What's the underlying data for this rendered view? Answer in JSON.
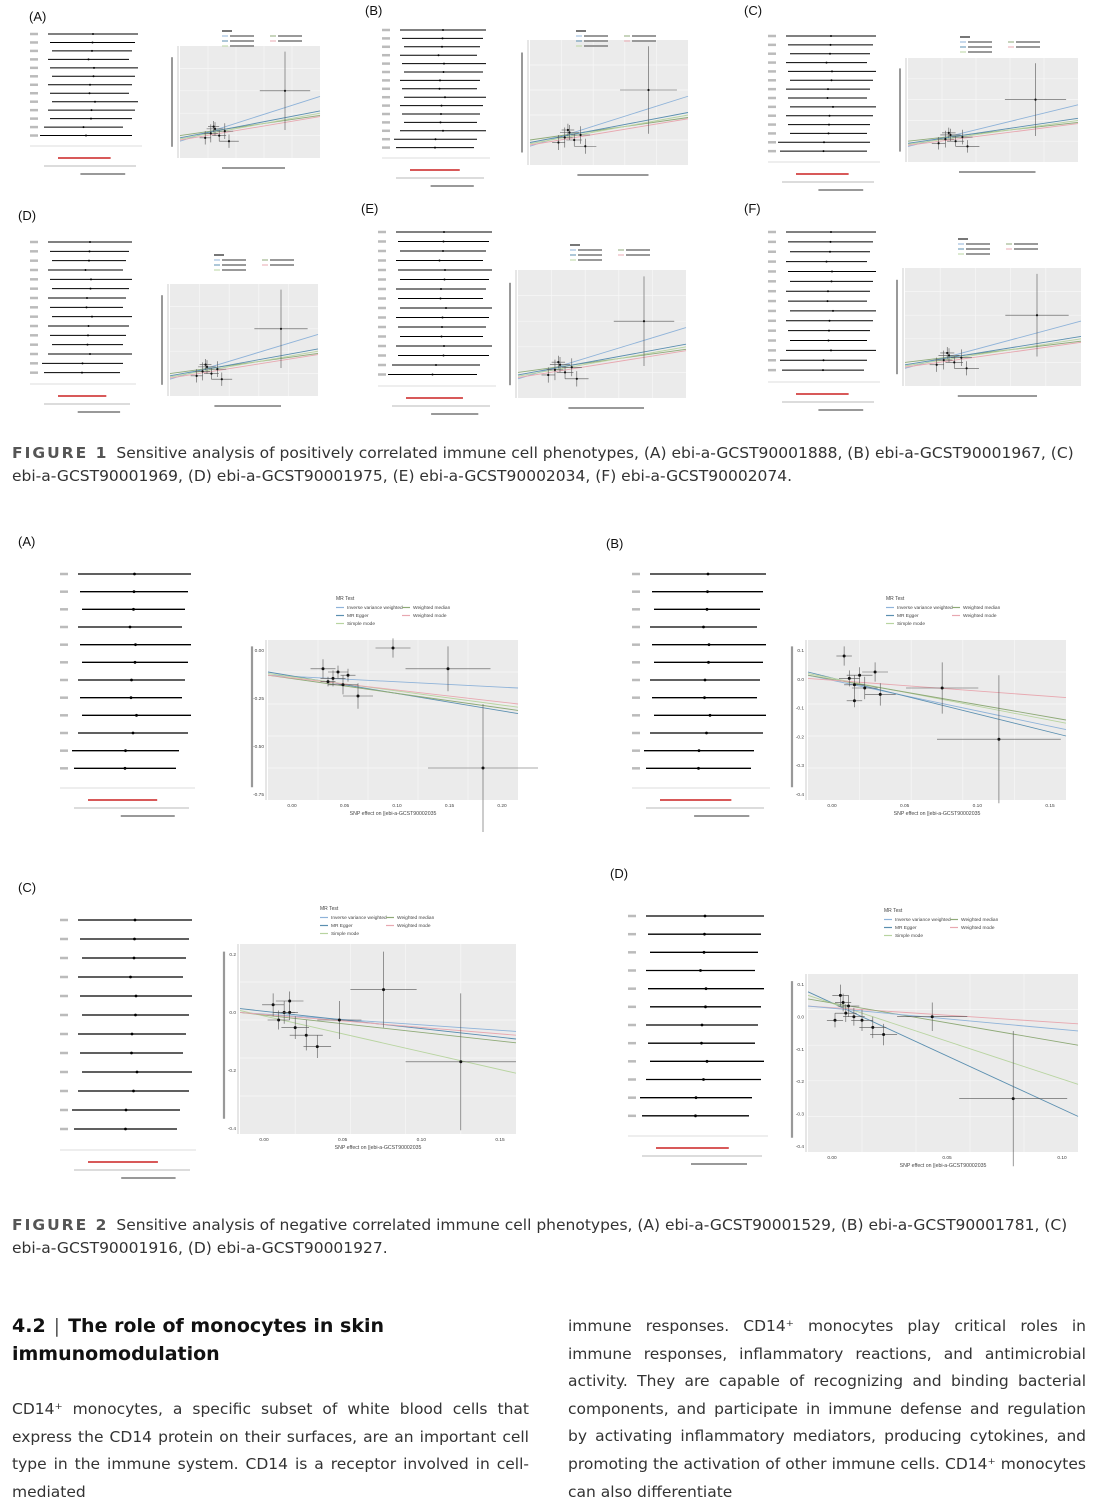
{
  "figure1": {
    "panel_labels": [
      "(A)",
      "(B)",
      "(C)",
      "(D)",
      "(E)",
      "(F)"
    ],
    "caption_label": "FIGURE 1",
    "caption_text": "Sensitive analysis of positively correlated immune cell phenotypes, (A) ebi-a-GCST90001888, (B) ebi-a-GCST90001967, (C) ebi-a-GCST90001969, (D) ebi-a-GCST90001975, (E) ebi-a-GCST90002034, (F) ebi-a-GCST90002074."
  },
  "figure2": {
    "panel_labels": [
      "(A)",
      "(B)",
      "(C)",
      "(D)"
    ],
    "caption_label": "FIGURE 2",
    "caption_text": "Sensitive analysis of negative correlated immune cell phenotypes, (A) ebi-a-GCST90001529, (B) ebi-a-GCST90001781, (C) ebi-a-GCST90001916, (D) ebi-a-GCST90001927.",
    "legend_title": "MR Test",
    "legend_items": [
      "Inverse variance weighted",
      "MR Egger",
      "Simple mode",
      "Weighted median",
      "Weighted mode"
    ],
    "x_labels": [
      "SNP effect on ||ebi-a-GCST90002035",
      "SNP effect on ||ebi-a-GCST90002035",
      "SNP effect on ||ebi-a-GCST90002035",
      "SNP effect on ||ebi-a-GCST90002035"
    ],
    "y_ticks": [
      [
        "0.00",
        "-0.25",
        "-0.50",
        "-0.75"
      ],
      [
        "0.1",
        "0.0",
        "-0.1",
        "-0.2",
        "-0.3",
        "-0.4"
      ],
      [
        "0.2",
        "0.0",
        "-0.2",
        "-0.4"
      ],
      [
        "0.1",
        "0.0",
        "-0.1",
        "-0.2",
        "-0.3",
        "-0.4"
      ]
    ],
    "x_ticks": [
      [
        "0.00",
        "0.05",
        "0.10",
        "0.15",
        "0.20"
      ],
      [
        "0.00",
        "0.05",
        "0.10",
        "0.15"
      ],
      [
        "0.00",
        "0.05",
        "0.10",
        "0.15"
      ],
      [
        "0.00",
        "0.05",
        "0.10"
      ]
    ]
  },
  "colors": {
    "ivw": "#8fb3d9",
    "egger": "#5b8fb0",
    "simple": "#b8d4a0",
    "wmedian": "#8faa78",
    "wmode": "#e8a8b0",
    "plot_bg": "#ebebeb",
    "red_line": "#cc2222"
  },
  "section": {
    "number": "4.2",
    "separator": "|",
    "title": "The role of monocytes in skin immunomodulation"
  },
  "paragraph_left": "CD14⁺ monocytes, a specific subset of white blood cells that express the CD14 protein on their surfaces, are an important cell type in the immune system. CD14 is a receptor involved in cell-mediated",
  "paragraph_right": "immune responses. CD14⁺ monocytes play critical roles in immune responses, inflammatory reactions, and antimicrobial activity. They are capable of recognizing and binding bacterial components, and participate in immune defense and regulation by activating inflammatory mediators, producing cytokines, and promoting the activation of other immune cells. CD14⁺ monocytes can also differentiate"
}
